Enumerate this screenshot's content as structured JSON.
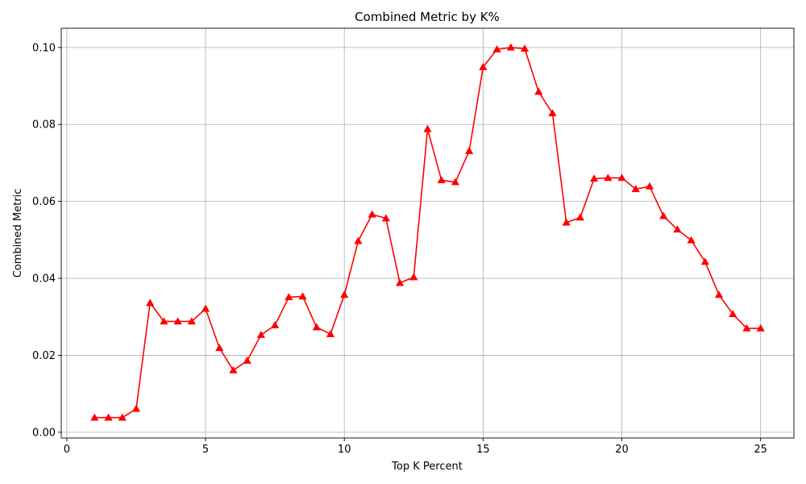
{
  "chart_data": {
    "type": "line",
    "title": "Combined Metric by K%",
    "xlabel": "Top K Percent",
    "ylabel": "Combined Metric",
    "xlim": [
      -0.2,
      26.2
    ],
    "ylim": [
      -0.0015,
      0.105
    ],
    "xticks": [
      0,
      5,
      10,
      15,
      20,
      25
    ],
    "xtick_labels": [
      "0",
      "5",
      "10",
      "15",
      "20",
      "25"
    ],
    "yticks": [
      0.0,
      0.02,
      0.04,
      0.06,
      0.08,
      0.1
    ],
    "ytick_labels": [
      "0.00",
      "0.02",
      "0.04",
      "0.06",
      "0.08",
      "0.10"
    ],
    "grid": true,
    "series": [
      {
        "name": "Combined Metric",
        "color": "#ff0000",
        "marker": "triangle-up",
        "x": [
          1.0,
          1.5,
          2.0,
          2.5,
          3.0,
          3.5,
          4.0,
          4.5,
          5.0,
          5.5,
          6.0,
          6.5,
          7.0,
          7.5,
          8.0,
          8.5,
          9.0,
          9.5,
          10.0,
          10.5,
          11.0,
          11.5,
          12.0,
          12.5,
          13.0,
          13.5,
          14.0,
          14.5,
          15.0,
          15.5,
          16.0,
          16.5,
          17.0,
          17.5,
          18.0,
          18.5,
          19.0,
          19.5,
          20.0,
          20.5,
          21.0,
          21.5,
          22.0,
          22.5,
          23.0,
          23.5,
          24.0,
          24.5,
          25.0
        ],
        "y": [
          0.0038,
          0.0038,
          0.0038,
          0.0061,
          0.0336,
          0.0288,
          0.0288,
          0.0288,
          0.0321,
          0.0219,
          0.0161,
          0.0186,
          0.0253,
          0.0278,
          0.0351,
          0.0353,
          0.0273,
          0.0255,
          0.0357,
          0.0497,
          0.0566,
          0.0556,
          0.0388,
          0.0403,
          0.0788,
          0.0655,
          0.065,
          0.0731,
          0.0949,
          0.0995,
          0.1,
          0.0997,
          0.0885,
          0.0829,
          0.0545,
          0.0558,
          0.0659,
          0.0661,
          0.0661,
          0.0632,
          0.0639,
          0.0562,
          0.0527,
          0.0499,
          0.0443,
          0.0357,
          0.0307,
          0.027,
          0.027
        ]
      }
    ]
  }
}
